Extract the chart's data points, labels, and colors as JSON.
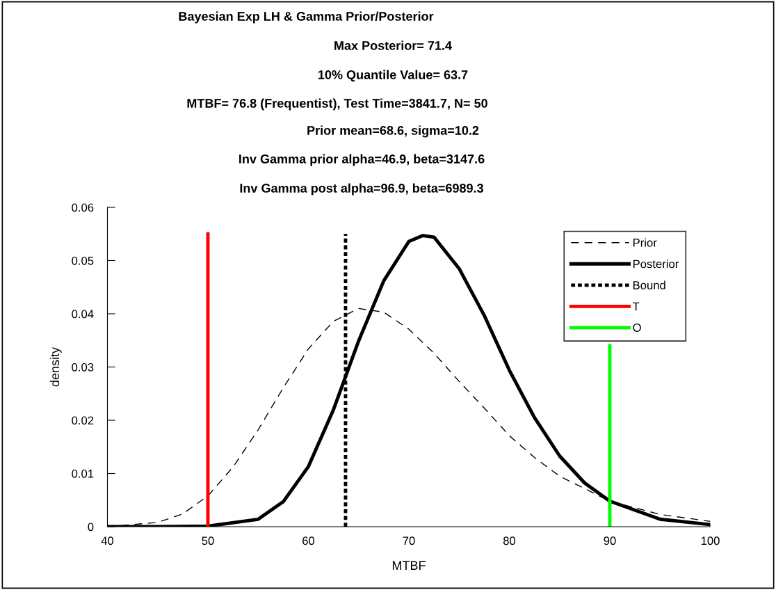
{
  "chart_data": {
    "type": "line",
    "title": "Bayesian Exp LH & Gamma Prior/Posterior",
    "annotations": [
      "Max Posterior= 71.4",
      "10% Quantile Value= 63.7",
      "MTBF= 76.8 (Frequentist), Test Time=3841.7, N= 50",
      "Prior mean=68.6, sigma=10.2",
      "Inv Gamma prior alpha=46.9, beta=3147.6",
      "Inv Gamma post alpha=96.9, beta=6989.3"
    ],
    "xlabel": "MTBF",
    "ylabel": "density",
    "xlim": [
      40,
      100
    ],
    "xticks": [
      40,
      50,
      60,
      70,
      80,
      90,
      100
    ],
    "ylim": [
      0,
      0.06
    ],
    "yticks": [
      0,
      0.01,
      0.02,
      0.03,
      0.04,
      0.05,
      0.06
    ],
    "grid": false,
    "legend": "top right",
    "marker": "none",
    "series": [
      {
        "name": "Prior",
        "color": "#000000",
        "line_style": "dashed",
        "x": [
          40,
          45,
          47.5,
          50,
          52.5,
          55,
          57.5,
          60,
          62.5,
          65,
          67.5,
          70,
          72.5,
          75,
          77.5,
          80,
          82.5,
          85,
          90,
          95,
          100
        ],
        "values": [
          0.0,
          0.0008,
          0.0024,
          0.0058,
          0.0112,
          0.0182,
          0.0261,
          0.0334,
          0.0386,
          0.041,
          0.0403,
          0.0371,
          0.0326,
          0.0273,
          0.0223,
          0.0171,
          0.013,
          0.0095,
          0.0048,
          0.0023,
          0.001
        ]
      },
      {
        "name": "Posterior",
        "color": "#000000",
        "line_style": "solid",
        "x": [
          40,
          45,
          50,
          55,
          57.5,
          60,
          62.5,
          65,
          67.5,
          70,
          71.4,
          72.5,
          75,
          77.5,
          80,
          82.5,
          85,
          87.5,
          90,
          95,
          100
        ],
        "values": [
          0.0,
          0.0,
          0.0001,
          0.0014,
          0.0047,
          0.0113,
          0.022,
          0.0349,
          0.0462,
          0.0536,
          0.0547,
          0.0544,
          0.0485,
          0.0397,
          0.0294,
          0.0205,
          0.0133,
          0.0082,
          0.0048,
          0.0014,
          0.0004
        ]
      },
      {
        "name": "Bound",
        "color": "#000000",
        "line_style": "dotted",
        "x": [
          63.7,
          63.7
        ],
        "values": [
          0,
          0.055
        ]
      },
      {
        "name": "T",
        "color": "#ff0000",
        "line_style": "solid",
        "x": [
          50,
          50
        ],
        "values": [
          0,
          0.055
        ]
      },
      {
        "name": "O",
        "color": "#00ff00",
        "line_style": "solid",
        "x": [
          90,
          90
        ],
        "values": [
          0,
          0.034
        ]
      }
    ]
  }
}
